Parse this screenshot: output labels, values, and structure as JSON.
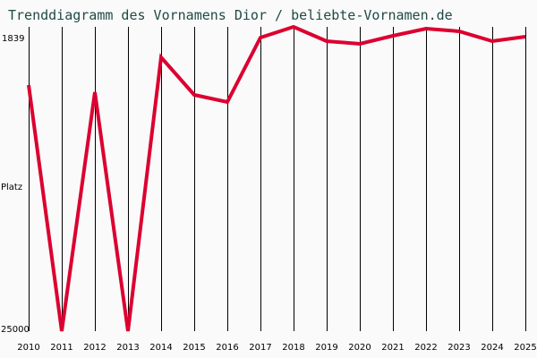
{
  "chart_data": {
    "type": "line",
    "title": "Trenddiagramm des Vornamens Dior / beliebte-Vornamen.de",
    "xlabel": "",
    "ylabel": "Platz",
    "ylim": [
      25000,
      1839
    ],
    "y_inverted": true,
    "y_ticks": [
      "1839",
      "25000"
    ],
    "categories": [
      "2010",
      "2011",
      "2012",
      "2013",
      "2014",
      "2015",
      "2016",
      "2017",
      "2018",
      "2019",
      "2020",
      "2021",
      "2022",
      "2023",
      "2024",
      "2025"
    ],
    "series": [
      {
        "name": "Dior",
        "color": "#dc0030",
        "values": [
          6267,
          25000,
          6812,
          25000,
          4155,
          7016,
          7561,
          2656,
          1839,
          2929,
          3133,
          2520,
          1975,
          2180,
          2929,
          2588
        ]
      }
    ],
    "grid": {
      "vertical": true,
      "horizontal": false
    },
    "legend": null
  },
  "header": {
    "title": "Trenddiagramm des Vornamens Dior / beliebte-Vornamen.de"
  },
  "axis": {
    "y_top_label": "1839",
    "y_mid_label": "Platz",
    "y_bottom_label": "25000"
  },
  "colors": {
    "line": "#dc0030",
    "title": "#1f4a44",
    "grid": "#000000",
    "background": "#fafafa"
  }
}
